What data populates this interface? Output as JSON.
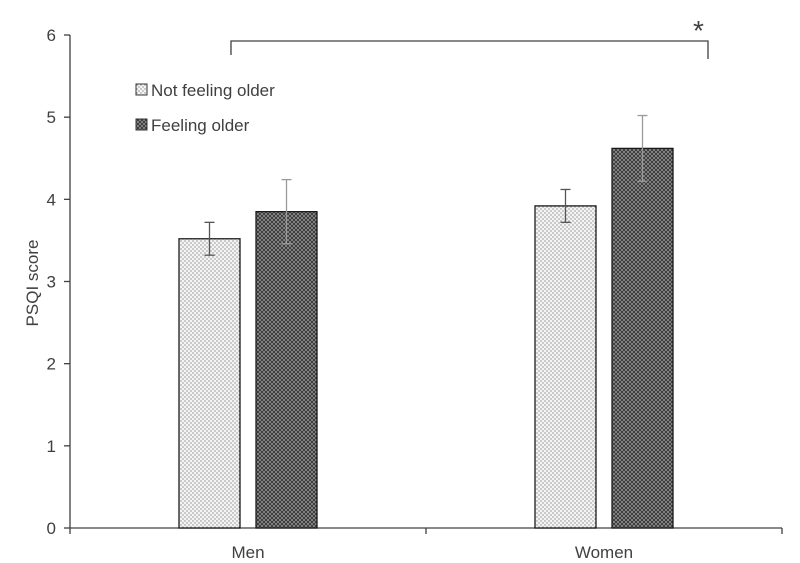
{
  "chart_data": {
    "type": "bar",
    "title": "",
    "xlabel": "",
    "ylabel": "PSQI score",
    "ylim": [
      0,
      6
    ],
    "yticks": [
      "0",
      "1",
      "2",
      "3",
      "4",
      "5",
      "6"
    ],
    "categories": [
      "Men",
      "Women"
    ],
    "series": [
      {
        "name": "Not feeling older",
        "values": [
          3.52,
          3.92
        ],
        "errors": [
          0.2,
          0.2
        ],
        "pattern": "dots-light"
      },
      {
        "name": "Feeling older",
        "values": [
          3.85,
          4.62
        ],
        "errors": [
          0.39,
          0.4
        ],
        "pattern": "crosshatch-dark"
      }
    ],
    "legend_position": "top-left",
    "grid": false,
    "annotations": [
      {
        "text": "*",
        "meaning": "significance bracket spanning Men Not feeling older to Women Feeling older"
      }
    ]
  },
  "colors": {
    "axis": "#404040",
    "light_bar_fill": "#f2f2f2",
    "dark_bar_fill": "#3a3a3a"
  }
}
